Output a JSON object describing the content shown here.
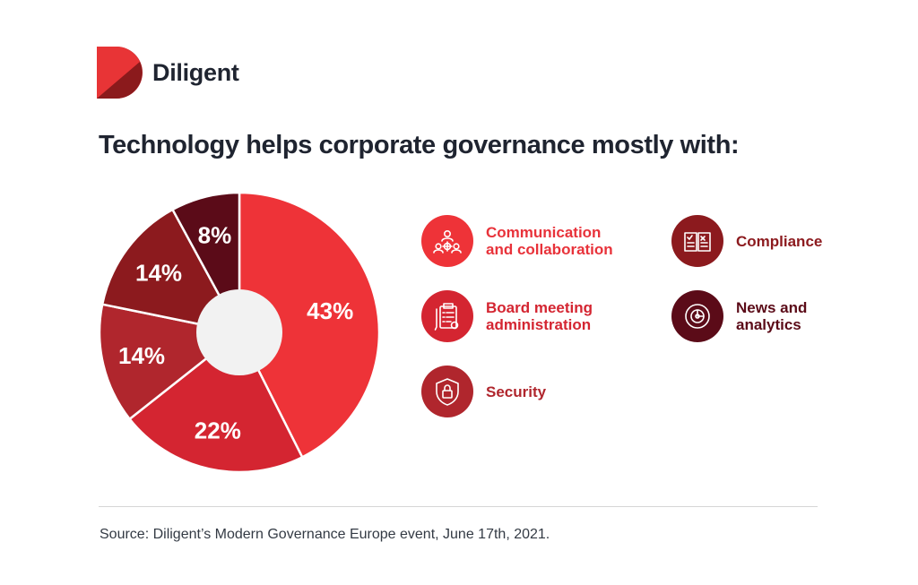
{
  "brand": {
    "name": "Diligent",
    "colors": [
      "#e83436",
      "#c0272d",
      "#8b1a1c"
    ]
  },
  "title": "Technology helps corporate governance mostly with:",
  "chart_data": {
    "type": "pie",
    "variant": "donut",
    "start_angle_deg": 0,
    "direction": "clockwise",
    "slices": [
      {
        "label": "Communication and collaboration",
        "value": 43,
        "display": "43%",
        "color": "#ee3338"
      },
      {
        "label": "Board meeting administration",
        "value": 22,
        "display": "22%",
        "color": "#d42531"
      },
      {
        "label": "Security",
        "value": 14,
        "display": "14%",
        "color": "#b0262d"
      },
      {
        "label": "Compliance",
        "value": 14,
        "display": "14%",
        "color": "#8c1a1e"
      },
      {
        "label": "News and analytics",
        "value": 8,
        "display": "8%",
        "color": "#5b0b18"
      }
    ],
    "center_color": "#f2f2f2"
  },
  "legend": [
    {
      "label": "Communication\nand collaboration",
      "icon": "collaboration-icon",
      "color": "#ee3338",
      "text_color": "#e8323a"
    },
    {
      "label": "Board meeting\nadministration",
      "icon": "clipboard-icon",
      "color": "#d42531",
      "text_color": "#d42531"
    },
    {
      "label": "Security",
      "icon": "shield-lock-icon",
      "color": "#b0262d",
      "text_color": "#b0262d"
    },
    {
      "label": "Compliance",
      "icon": "book-icon",
      "color": "#8c1a1e",
      "text_color": "#8c1a1e"
    },
    {
      "label": "News and\nanalytics",
      "icon": "analytics-icon",
      "color": "#5b0b18",
      "text_color": "#5b0b18"
    }
  ],
  "source": "Source: Diligent’s Modern Governance Europe event, June 17th, 2021."
}
